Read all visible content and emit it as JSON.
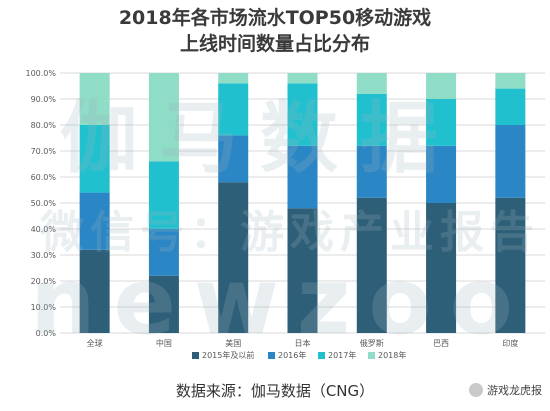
{
  "header": {
    "title_line1": "2018年各市场流水TOP50移动游戏",
    "title_line2": "上线时间数量占比分布"
  },
  "footer": {
    "source": "数据来源：伽马数据（CNG）",
    "badge": "游戏龙虎报"
  },
  "watermark": {
    "line1": "伽马数据",
    "line2": "微信号：游戏产业报告",
    "line3": "newzoo"
  },
  "colors": {
    "s2015": "#2e5f78",
    "s2016": "#2a86c4",
    "s2017": "#21c0cf",
    "s2018": "#8fdcc7",
    "grid": "#d9d9d9",
    "axis_text": "#595959"
  },
  "chart_data": {
    "type": "bar",
    "stacked": true,
    "categories": [
      "全球",
      "中国",
      "美国",
      "日本",
      "俄罗斯",
      "巴西",
      "印度"
    ],
    "series": [
      {
        "name": "2015年及以前",
        "values": [
          32,
          22,
          58,
          48,
          52,
          50,
          52
        ]
      },
      {
        "name": "2016年",
        "values": [
          22,
          18,
          18,
          24,
          20,
          22,
          28
        ]
      },
      {
        "name": "2017年",
        "values": [
          26,
          26,
          20,
          24,
          20,
          18,
          14
        ]
      },
      {
        "name": "2018年",
        "values": [
          20,
          34,
          4,
          4,
          8,
          10,
          6
        ]
      }
    ],
    "y_ticks": [
      "0.0%",
      "10.0%",
      "20.0%",
      "30.0%",
      "40.0%",
      "50.0%",
      "60.0%",
      "70.0%",
      "80.0%",
      "90.0%",
      "100.0%"
    ],
    "ylim": [
      0,
      100
    ],
    "grid": true,
    "legend_position": "bottom"
  }
}
